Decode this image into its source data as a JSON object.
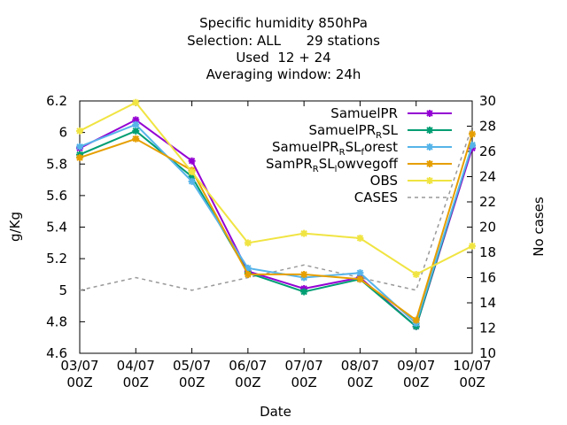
{
  "chart_data": {
    "type": "line",
    "title_lines": [
      "Specific humidity 850hPa",
      "Selection: ALL      29 stations",
      "Used  12 + 24",
      "Averaging window: 24h"
    ],
    "xlabel": "Date",
    "ylabel": "g/Kg",
    "y2label": "No cases",
    "categories": [
      "03/07\n00Z",
      "04/07\n00Z",
      "05/07\n00Z",
      "06/07\n00Z",
      "07/07\n00Z",
      "08/07\n00Z",
      "09/07\n00Z",
      "10/07\n00Z"
    ],
    "ylim": [
      4.6,
      6.2
    ],
    "yticks": [
      "4.6",
      "4.8",
      "5",
      "5.2",
      "5.4",
      "5.6",
      "5.8",
      "6",
      "6.2"
    ],
    "y2lim": [
      10,
      30
    ],
    "y2ticks": [
      "10",
      "12",
      "14",
      "16",
      "18",
      "20",
      "22",
      "24",
      "26",
      "28",
      "30"
    ],
    "legend_position": "top-right",
    "grid": false,
    "series": [
      {
        "name": "SamuelPR",
        "legend": [
          {
            "t": "SamuelPR"
          }
        ],
        "color": "#9400d3",
        "values": [
          5.9,
          6.08,
          5.82,
          5.12,
          5.01,
          5.08,
          4.77,
          5.9
        ]
      },
      {
        "name": "SamuelPR_RSL",
        "legend": [
          {
            "t": "SamuelPR"
          },
          {
            "t": "R",
            "sub": true
          },
          {
            "t": "SL"
          }
        ],
        "color": "#009e73",
        "values": [
          5.86,
          6.01,
          5.72,
          5.11,
          4.99,
          5.07,
          4.77,
          5.92
        ]
      },
      {
        "name": "SamuelPR_RSL_forest",
        "legend": [
          {
            "t": "SamuelPR"
          },
          {
            "t": "R",
            "sub": true
          },
          {
            "t": "SL"
          },
          {
            "t": "f",
            "sub": true
          },
          {
            "t": "orest"
          }
        ],
        "color": "#56b4e9",
        "values": [
          5.91,
          6.05,
          5.69,
          5.14,
          5.08,
          5.11,
          4.79,
          5.92
        ]
      },
      {
        "name": "SamPR_RSL_lowvegoff",
        "legend": [
          {
            "t": "SamPR"
          },
          {
            "t": "R",
            "sub": true
          },
          {
            "t": "SL"
          },
          {
            "t": "l",
            "sub": true
          },
          {
            "t": "owvegoff"
          }
        ],
        "color": "#e69f00",
        "values": [
          5.84,
          5.96,
          5.76,
          5.1,
          5.1,
          5.07,
          4.81,
          5.99
        ]
      },
      {
        "name": "OBS",
        "legend": [
          {
            "t": "OBS"
          }
        ],
        "color": "#f0e442",
        "values": [
          6.01,
          6.19,
          5.75,
          5.3,
          5.36,
          5.33,
          5.1,
          5.28
        ]
      },
      {
        "name": "CASES",
        "legend": [
          {
            "t": "CASES"
          }
        ],
        "color": "#999999",
        "axis": "y2",
        "dashed": true,
        "values": [
          15,
          16,
          15,
          16,
          17,
          16,
          15,
          28
        ]
      }
    ]
  }
}
